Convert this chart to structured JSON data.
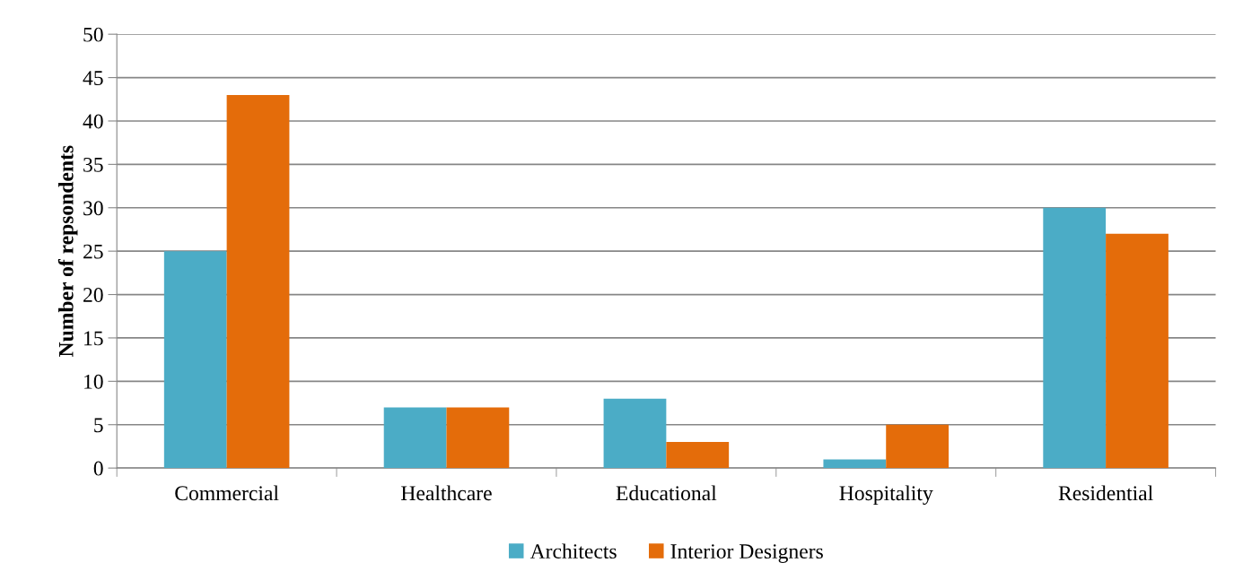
{
  "chart_data": {
    "type": "bar",
    "ylabel": "Number of repsondents",
    "categories": [
      "Commercial",
      "Healthcare",
      "Educational",
      "Hospitality",
      "Residential"
    ],
    "series": [
      {
        "name": "Architects",
        "color": "#4bacc6",
        "values": [
          25,
          7,
          8,
          1,
          30
        ]
      },
      {
        "name": "Interior Designers",
        "color": "#e46c0a",
        "values": [
          43,
          7,
          3,
          5,
          27
        ]
      }
    ],
    "ylim": [
      0,
      50
    ],
    "yticks": [
      0,
      5,
      10,
      15,
      20,
      25,
      30,
      35,
      40,
      45,
      50
    ],
    "grid": "y",
    "legend": "bottom"
  }
}
